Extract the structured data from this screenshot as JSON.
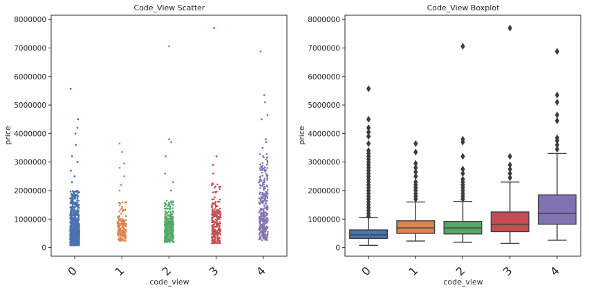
{
  "chart_data": [
    {
      "type": "scatter",
      "subtype": "stripplot",
      "title": "Code_View Scatter",
      "xlabel": "code_view",
      "ylabel": "price",
      "categories": [
        "0",
        "1",
        "2",
        "3",
        "4"
      ],
      "ylim": [
        -300000,
        8150000
      ],
      "yticks": [
        "0",
        "1000000",
        "2000000",
        "3000000",
        "4000000",
        "5000000",
        "6000000",
        "7000000",
        "8000000"
      ],
      "series": [
        {
          "category": "0",
          "color": "#4c72b0",
          "median": 450000,
          "q1": 320000,
          "q3": 650000,
          "min": 80000,
          "dense_max": 2000000,
          "n": 1600,
          "outliers": [
            2300000,
            2500000,
            2700000,
            3000000,
            3200000,
            3600000,
            4000000,
            4200000,
            4500000,
            5570000
          ]
        },
        {
          "category": "1",
          "color": "#dd8452",
          "median": 690000,
          "q1": 500000,
          "q3": 950000,
          "min": 230000,
          "dense_max": 1600000,
          "n": 160,
          "outliers": [
            2000000,
            2200000,
            2500000,
            2800000,
            2950000,
            3350000,
            3650000
          ]
        },
        {
          "category": "2",
          "color": "#55a868",
          "median": 690000,
          "q1": 480000,
          "q3": 920000,
          "min": 190000,
          "dense_max": 1650000,
          "n": 360,
          "outliers": [
            2000000,
            2300000,
            2600000,
            3200000,
            3700000,
            3800000,
            7060000
          ]
        },
        {
          "category": "3",
          "color": "#c44e52",
          "median": 820000,
          "q1": 560000,
          "q3": 1250000,
          "min": 150000,
          "dense_max": 2300000,
          "n": 250,
          "outliers": [
            2600000,
            2900000,
            3200000,
            7700000
          ]
        },
        {
          "category": "4",
          "color": "#8172b3",
          "median": 1200000,
          "q1": 820000,
          "q3": 1850000,
          "min": 260000,
          "dense_max": 3300000,
          "n": 300,
          "outliers": [
            3500000,
            3700000,
            3800000,
            4500000,
            4650000,
            5100000,
            5350000,
            6880000
          ]
        }
      ]
    },
    {
      "type": "box",
      "title": "Code_View Boxplot",
      "xlabel": "code_view",
      "ylabel": "price",
      "categories": [
        "0",
        "1",
        "2",
        "3",
        "4"
      ],
      "ylim": [
        -300000,
        8150000
      ],
      "yticks": [
        "0",
        "1000000",
        "2000000",
        "3000000",
        "4000000",
        "5000000",
        "6000000",
        "7000000",
        "8000000"
      ],
      "series": [
        {
          "category": "0",
          "color": "#4c72b0",
          "q1": 320000,
          "median": 450000,
          "q3": 620000,
          "whisker_low": 80000,
          "whisker_high": 1050000,
          "outliers": [
            1100000,
            1200000,
            1300000,
            1400000,
            1500000,
            1600000,
            1700000,
            1800000,
            1900000,
            2000000,
            2100000,
            2200000,
            2300000,
            2400000,
            2500000,
            2600000,
            2700000,
            2800000,
            2900000,
            3000000,
            3100000,
            3200000,
            3300000,
            3400000,
            3650000,
            3900000,
            4050000,
            4200000,
            4500000,
            5570000
          ]
        },
        {
          "category": "1",
          "color": "#dd8452",
          "q1": 500000,
          "median": 690000,
          "q3": 940000,
          "whisker_low": 230000,
          "whisker_high": 1600000,
          "outliers": [
            1700000,
            1800000,
            1900000,
            2000000,
            2100000,
            2200000,
            2300000,
            2500000,
            2650000,
            2800000,
            2950000,
            3350000,
            3650000
          ]
        },
        {
          "category": "2",
          "color": "#55a868",
          "q1": 480000,
          "median": 690000,
          "q3": 920000,
          "whisker_low": 190000,
          "whisker_high": 1620000,
          "outliers": [
            1700000,
            1800000,
            1900000,
            2000000,
            2100000,
            2200000,
            2300000,
            2400000,
            2600000,
            2750000,
            3200000,
            3700000,
            3800000,
            7060000
          ]
        },
        {
          "category": "3",
          "color": "#c44e52",
          "q1": 560000,
          "median": 820000,
          "q3": 1250000,
          "whisker_low": 150000,
          "whisker_high": 2300000,
          "outliers": [
            2450000,
            2600000,
            2750000,
            2900000,
            3200000,
            7700000
          ]
        },
        {
          "category": "4",
          "color": "#8172b3",
          "q1": 820000,
          "median": 1200000,
          "q3": 1850000,
          "whisker_low": 260000,
          "whisker_high": 3300000,
          "outliers": [
            3450000,
            3600000,
            3750000,
            3850000,
            4450000,
            4650000,
            5100000,
            5350000,
            6880000
          ]
        }
      ]
    }
  ]
}
